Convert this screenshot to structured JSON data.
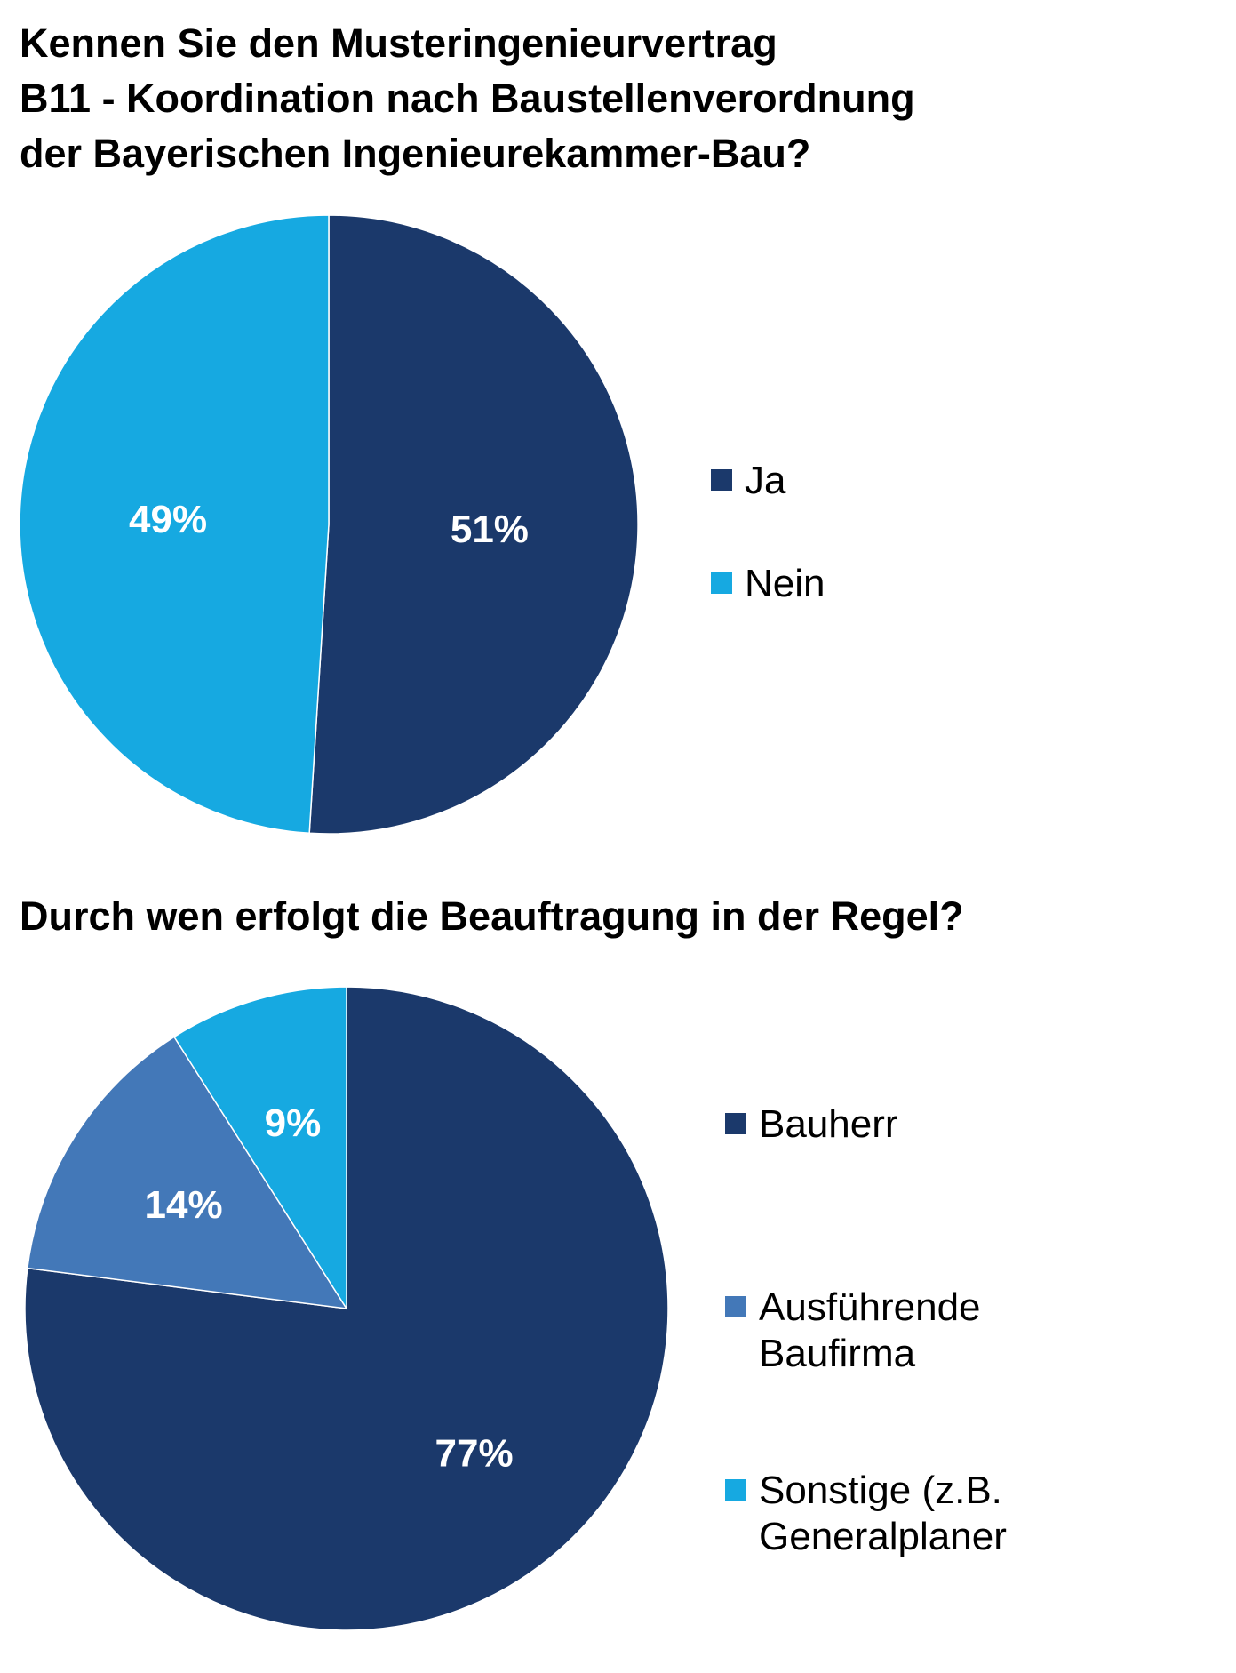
{
  "chart_data": [
    {
      "type": "pie",
      "title": "Kennen Sie den Musteringenieurvertrag\nB11 - Koordination nach Baustellenverordnung\nder Bayerischen Ingenieurekammer-Bau?",
      "categories": [
        "Ja",
        "Nein"
      ],
      "values": [
        51,
        49
      ],
      "value_labels": [
        "51%",
        "49%"
      ],
      "colors": [
        "#1b396b",
        "#16a9e1"
      ],
      "legend": [
        [
          "Ja"
        ],
        [
          "Nein"
        ]
      ],
      "legend_position": "right"
    },
    {
      "type": "pie",
      "title": "Durch wen erfolgt die Beauftragung in der Regel?",
      "categories": [
        "Bauherr",
        "Ausführende Baufirma",
        "Sonstige (z.B. Generalplaner"
      ],
      "values": [
        77,
        14,
        9
      ],
      "value_labels": [
        "77%",
        "14%",
        "9%"
      ],
      "colors": [
        "#1b396b",
        "#4378b8",
        "#16a9e1"
      ],
      "legend": [
        [
          "Bauherr"
        ],
        [
          "Ausführende",
          "Baufirma"
        ],
        [
          "Sonstige (z.B.",
          "Generalplaner"
        ]
      ],
      "legend_position": "right"
    }
  ]
}
